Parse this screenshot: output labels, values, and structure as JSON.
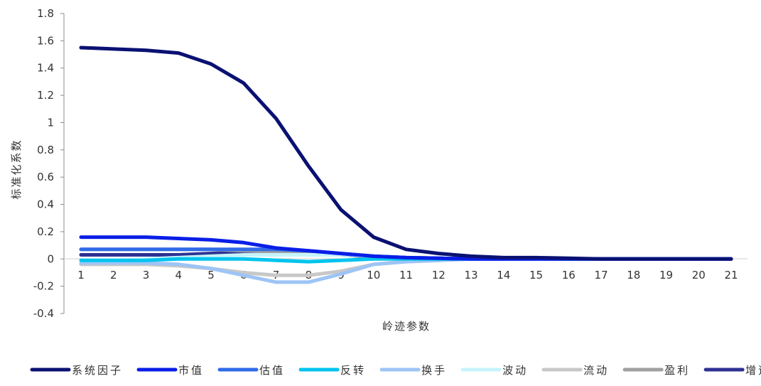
{
  "chart_data": {
    "type": "line",
    "title": "",
    "xlabel": "岭迹参数",
    "ylabel": "标准化系数",
    "x": [
      1,
      2,
      3,
      4,
      5,
      6,
      7,
      8,
      9,
      10,
      11,
      12,
      13,
      14,
      15,
      16,
      17,
      18,
      19,
      20,
      21
    ],
    "ylim": [
      -0.4,
      1.8
    ],
    "yticks": [
      "-0.4",
      "-0.2",
      "0",
      "0.2",
      "0.4",
      "0.6",
      "0.8",
      "1",
      "1.2",
      "1.4",
      "1.6",
      "1.8"
    ],
    "grid": false,
    "legend_position": "bottom",
    "series": [
      {
        "name": "系统因子",
        "color": "#0a1172",
        "values": [
          1.55,
          1.54,
          1.53,
          1.51,
          1.43,
          1.29,
          1.03,
          0.68,
          0.36,
          0.16,
          0.07,
          0.04,
          0.02,
          0.01,
          0.01,
          0.005,
          0.0,
          0.0,
          0.0,
          0.0,
          0.0
        ]
      },
      {
        "name": "市值",
        "color": "#0a1ee6",
        "values": [
          0.16,
          0.16,
          0.16,
          0.15,
          0.14,
          0.12,
          0.08,
          0.06,
          0.04,
          0.02,
          0.01,
          0.005,
          0.0,
          0.0,
          0.0,
          0.0,
          0.0,
          0.0,
          0.0,
          0.0,
          0.0
        ]
      },
      {
        "name": "估值",
        "color": "#2f6ae8",
        "values": [
          0.07,
          0.07,
          0.07,
          0.07,
          0.07,
          0.07,
          0.07,
          0.06,
          0.04,
          0.02,
          0.01,
          0.005,
          0.0,
          0.0,
          0.0,
          0.0,
          0.0,
          0.0,
          0.0,
          0.0,
          0.0
        ]
      },
      {
        "name": "反转",
        "color": "#00c4ee",
        "values": [
          -0.01,
          -0.01,
          -0.01,
          0.0,
          0.0,
          0.0,
          -0.01,
          -0.02,
          -0.01,
          0.0,
          0.0,
          0.0,
          0.0,
          0.0,
          0.0,
          0.0,
          0.0,
          0.0,
          0.0,
          0.0,
          0.0
        ]
      },
      {
        "name": "换手",
        "color": "#9ec4f5",
        "values": [
          -0.03,
          -0.03,
          -0.03,
          -0.04,
          -0.07,
          -0.12,
          -0.17,
          -0.17,
          -0.11,
          -0.04,
          -0.02,
          -0.01,
          0.0,
          0.0,
          0.0,
          0.0,
          0.0,
          0.0,
          0.0,
          0.0,
          0.0
        ]
      },
      {
        "name": "波动",
        "color": "#c6f4fb",
        "values": [
          -0.01,
          -0.01,
          0.0,
          0.01,
          0.02,
          0.03,
          0.03,
          0.03,
          0.03,
          0.02,
          0.01,
          0.005,
          0.0,
          0.0,
          0.0,
          0.0,
          0.0,
          0.0,
          0.0,
          0.0,
          0.0
        ]
      },
      {
        "name": "流动",
        "color": "#c8c8c8",
        "values": [
          -0.04,
          -0.04,
          -0.04,
          -0.05,
          -0.07,
          -0.1,
          -0.12,
          -0.12,
          -0.09,
          -0.04,
          -0.02,
          -0.01,
          0.0,
          0.0,
          0.0,
          0.0,
          0.0,
          0.0,
          0.0,
          0.0,
          0.0
        ]
      },
      {
        "name": "盈利",
        "color": "#a0a0a0",
        "values": [
          0.07,
          0.07,
          0.07,
          0.07,
          0.07,
          0.06,
          0.05,
          0.04,
          0.03,
          0.02,
          0.01,
          0.005,
          0.0,
          0.0,
          0.0,
          0.0,
          0.0,
          0.0,
          0.0,
          0.0,
          0.0
        ]
      },
      {
        "name": "增速",
        "color": "#2e3192",
        "values": [
          0.03,
          0.03,
          0.03,
          0.03,
          0.04,
          0.05,
          0.05,
          0.04,
          0.03,
          0.015,
          0.01,
          0.005,
          0.0,
          0.0,
          0.0,
          0.0,
          0.0,
          0.0,
          0.0,
          0.0,
          0.0
        ]
      }
    ]
  }
}
